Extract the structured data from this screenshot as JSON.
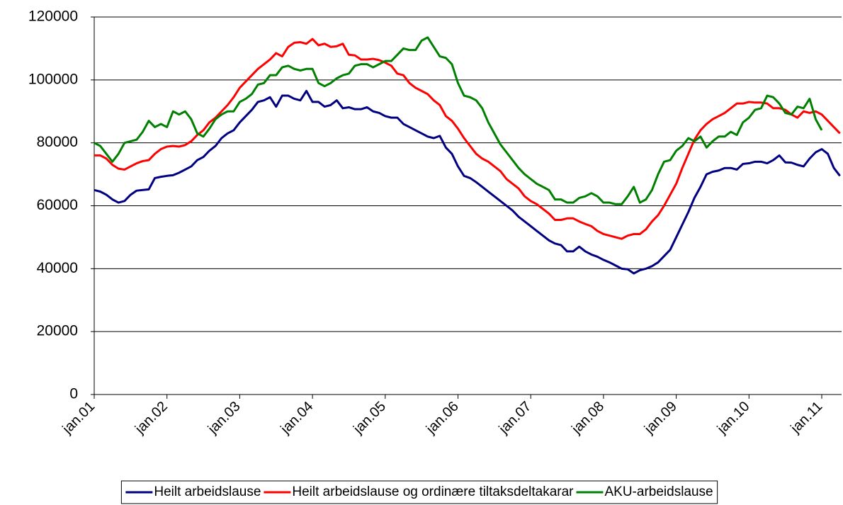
{
  "chart_data": {
    "type": "line",
    "categories": [
      "jan.01",
      null,
      null,
      null,
      null,
      null,
      null,
      null,
      null,
      null,
      null,
      null,
      "jan.02",
      null,
      null,
      null,
      null,
      null,
      null,
      null,
      null,
      null,
      null,
      null,
      "jan.03",
      null,
      null,
      null,
      null,
      null,
      null,
      null,
      null,
      null,
      null,
      null,
      "jan.04",
      null,
      null,
      null,
      null,
      null,
      null,
      null,
      null,
      null,
      null,
      null,
      "jan.05",
      null,
      null,
      null,
      null,
      null,
      null,
      null,
      null,
      null,
      null,
      null,
      "jan.06",
      null,
      null,
      null,
      null,
      null,
      null,
      null,
      null,
      null,
      null,
      null,
      "jan.07",
      null,
      null,
      null,
      null,
      null,
      null,
      null,
      null,
      null,
      null,
      null,
      "jan.08",
      null,
      null,
      null,
      null,
      null,
      null,
      null,
      null,
      null,
      null,
      null,
      "jan.09",
      null,
      null,
      null,
      null,
      null,
      null,
      null,
      null,
      null,
      null,
      null,
      "jan.10",
      null,
      null,
      null,
      null,
      null,
      null,
      null,
      null,
      null,
      null,
      null,
      "jan.11",
      null,
      null,
      null
    ],
    "series": [
      {
        "name": "Heilt arbeidslause",
        "color": "#000080",
        "values": [
          65000,
          64500,
          63500,
          62000,
          61000,
          61500,
          63500,
          64800,
          65000,
          65200,
          68800,
          69200,
          69500,
          69700,
          70500,
          71500,
          72500,
          74500,
          75500,
          77500,
          79000,
          81500,
          83000,
          84000,
          86500,
          88500,
          90500,
          93000,
          93500,
          94500,
          91500,
          95000,
          95000,
          94000,
          93500,
          96500,
          93000,
          93000,
          91500,
          92000,
          93500,
          91000,
          91300,
          90700,
          90700,
          91300,
          90000,
          89500,
          88500,
          88000,
          88000,
          86000,
          85000,
          84000,
          83000,
          82000,
          81500,
          82200,
          78500,
          76500,
          72500,
          69500,
          68800,
          67500,
          66000,
          64500,
          63000,
          61500,
          60000,
          58500,
          56500,
          55000,
          53500,
          52000,
          50500,
          49000,
          48000,
          47500,
          45500,
          45500,
          47000,
          45500,
          44500,
          43800,
          42800,
          42000,
          41000,
          40000,
          39800,
          38500,
          39500,
          40000,
          40800,
          42000,
          44000,
          46000,
          50000,
          54000,
          58000,
          62500,
          66000,
          70000,
          70800,
          71200,
          72000,
          72000,
          71500,
          73300,
          73500,
          74000,
          74000,
          73500,
          74500,
          76000,
          73800,
          73700,
          73000,
          72500,
          75000,
          77000,
          78000,
          76500,
          72000,
          69500
        ]
      },
      {
        "name": "Heilt arbeidslause og ordinære tiltaksdeltakarar",
        "color": "#ff0000",
        "values": [
          76000,
          76000,
          75000,
          73000,
          71800,
          71500,
          72500,
          73500,
          74200,
          74500,
          76500,
          78000,
          78800,
          79000,
          78800,
          79300,
          80500,
          82500,
          84000,
          86500,
          88000,
          90000,
          92000,
          94500,
          97500,
          99500,
          101500,
          103500,
          105000,
          106500,
          108500,
          107500,
          110500,
          111800,
          112000,
          111500,
          113000,
          111000,
          111500,
          110500,
          110700,
          111500,
          108000,
          107800,
          106500,
          106500,
          106700,
          106300,
          105500,
          104500,
          102000,
          101500,
          99000,
          97500,
          96500,
          95500,
          93500,
          92000,
          88500,
          87000,
          84500,
          81500,
          79000,
          76500,
          75000,
          74000,
          72500,
          71000,
          68500,
          67000,
          65500,
          63000,
          61500,
          60500,
          59000,
          57500,
          55500,
          55500,
          56000,
          56000,
          55000,
          54200,
          53500,
          52000,
          51000,
          50500,
          50000,
          49500,
          50500,
          51000,
          51000,
          52500,
          55000,
          57000,
          60000,
          63500,
          67000,
          72000,
          76500,
          81000,
          84000,
          86000,
          87500,
          88500,
          89500,
          91000,
          92500,
          92500,
          93000,
          92800,
          92800,
          92500,
          91000,
          91000,
          90500,
          89000,
          88000,
          90000,
          89500,
          90000,
          89000,
          87000,
          85000,
          83000
        ]
      },
      {
        "name": "AKU-arbeidslause",
        "color": "#008000",
        "values": [
          80000,
          79000,
          76500,
          74000,
          76500,
          80000,
          80500,
          81000,
          83500,
          87000,
          85000,
          86000,
          85000,
          90000,
          89000,
          90000,
          87500,
          83000,
          82000,
          84500,
          87500,
          89000,
          90000,
          90000,
          93000,
          94000,
          95500,
          98500,
          99000,
          101500,
          101500,
          104000,
          104500,
          103500,
          103000,
          103500,
          103500,
          99000,
          98000,
          99000,
          100500,
          101500,
          102000,
          104500,
          105000,
          105000,
          104000,
          105000,
          106000,
          106000,
          108000,
          110000,
          109500,
          109500,
          112500,
          113500,
          110500,
          107500,
          107000,
          105000,
          99000,
          95000,
          94500,
          93500,
          91000,
          86500,
          83000,
          79500,
          77000,
          74500,
          72000,
          70000,
          68500,
          67000,
          66000,
          65000,
          62000,
          62000,
          61000,
          61000,
          62500,
          63000,
          64000,
          63000,
          61000,
          61000,
          60500,
          60500,
          63000,
          66000,
          61000,
          62000,
          65000,
          70000,
          74000,
          74500,
          77500,
          79000,
          81500,
          80500,
          82000,
          78500,
          80500,
          82000,
          82000,
          83500,
          82500,
          86500,
          88000,
          90500,
          91000,
          95000,
          94500,
          92500,
          89500,
          89000,
          91500,
          91000,
          94000,
          87500,
          84000,
          null,
          null,
          null
        ]
      }
    ],
    "ylim": [
      0,
      120000
    ],
    "yticks": [
      0,
      20000,
      40000,
      60000,
      80000,
      100000,
      120000
    ],
    "grid": true,
    "legend": "bottom"
  }
}
